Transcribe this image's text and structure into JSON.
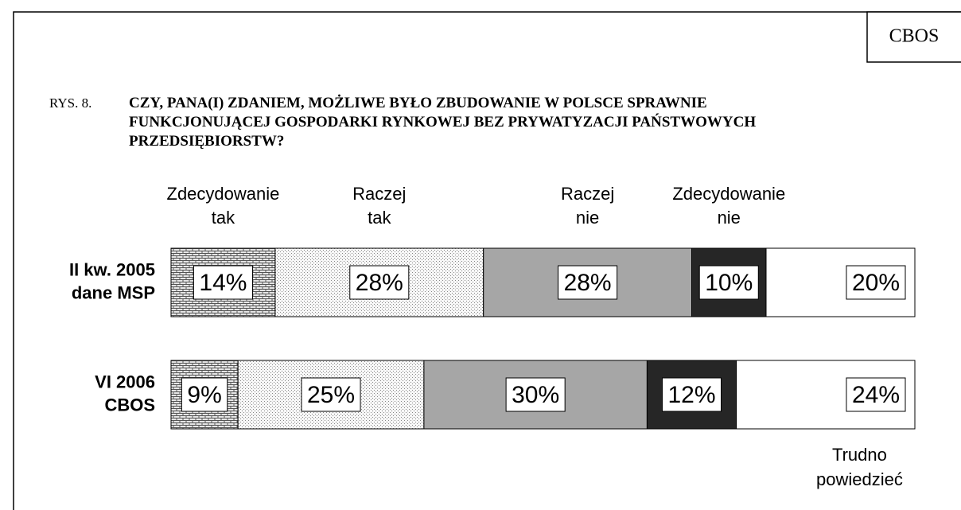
{
  "source": "CBOS",
  "chart_data": {
    "type": "stacked-bar-horizontal",
    "figure_label": "RYS. 8.",
    "title": "CZY, PANA(I) ZDANIEM, MOŻLIWE BYŁO ZBUDOWANIE W POLSCE SPRAWNIE\nFUNKCJONUJĄCEJ GOSPODARKI RYNKOWEJ BEZ PRYWATYZACJI PAŃSTWOWYCH\nPRZEDSIĘBIORSTW?",
    "categories": [
      "II kw. 2005\ndane MSP",
      "VI 2006\nCBOS"
    ],
    "series": [
      {
        "name": "Zdecydowanie\ntak",
        "color": "#9a9a9a",
        "pattern": "bricks",
        "values": [
          14,
          9
        ],
        "value_labels": [
          "14%",
          "9%"
        ]
      },
      {
        "name": "Raczej\ntak",
        "color": "#bdbdbd",
        "pattern": "dots",
        "values": [
          28,
          25
        ],
        "value_labels": [
          "28%",
          "25%"
        ]
      },
      {
        "name": "Raczej\nnie",
        "color": "#a6a6a6",
        "values": [
          28,
          30
        ],
        "value_labels": [
          "28%",
          "30%"
        ]
      },
      {
        "name": "Zdecydowanie\nnie",
        "color": "#262626",
        "values": [
          10,
          12
        ],
        "value_labels": [
          "10%",
          "12%"
        ]
      },
      {
        "name": "Trudno\npowiedzieć",
        "color": "#ffffff",
        "values": [
          20,
          24
        ],
        "value_labels": [
          "20%",
          "24%"
        ]
      }
    ]
  }
}
